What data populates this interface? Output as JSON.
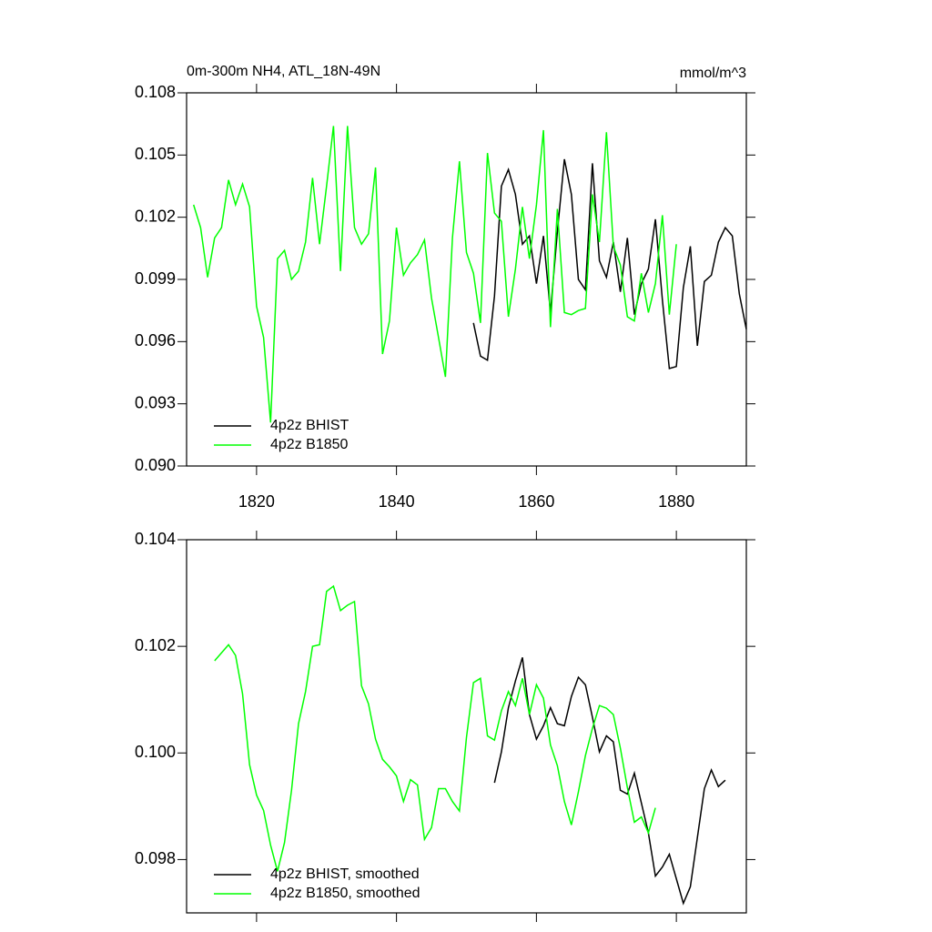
{
  "chart_data": [
    {
      "type": "line",
      "title": "0m-300m NH4, ATL_18N-49N",
      "units": "mmol/m^3",
      "xlim": [
        1810,
        1890
      ],
      "xticks": [
        1820,
        1840,
        1860,
        1880
      ],
      "ylim": [
        0.09,
        0.108
      ],
      "yticks": [
        {
          "value": 0.09,
          "label": "0.090"
        },
        0.093,
        0.096,
        0.099,
        0.102,
        0.105,
        0.108
      ],
      "series": [
        {
          "name": "4p2z BHIST",
          "color": "#000000",
          "x": [
            1851,
            1852,
            1853,
            1854,
            1855,
            1856,
            1857,
            1858,
            1859,
            1860,
            1861,
            1862,
            1863,
            1864,
            1865,
            1866,
            1867,
            1868,
            1869,
            1870,
            1871,
            1872,
            1873,
            1874,
            1875,
            1876,
            1877,
            1878,
            1879,
            1880,
            1881,
            1882,
            1883,
            1884,
            1885,
            1886,
            1887,
            1888,
            1889,
            1890
          ],
          "values": [
            0.0969,
            0.0953,
            0.0951,
            0.0982,
            0.1035,
            0.1043,
            0.1031,
            0.1007,
            0.1011,
            0.0988,
            0.1011,
            0.0974,
            0.1013,
            0.1048,
            0.1031,
            0.099,
            0.0985,
            0.1046,
            0.0999,
            0.0991,
            0.1008,
            0.0984,
            0.101,
            0.0973,
            0.0988,
            0.0995,
            0.1019,
            0.098,
            0.0947,
            0.0948,
            0.0986,
            0.1006,
            0.0958,
            0.0989,
            0.0992,
            0.1008,
            0.1015,
            0.1011,
            0.0983,
            0.0966
          ]
        },
        {
          "name": "4p2z B1850",
          "color": "#00ff00",
          "x": [
            1811,
            1812,
            1813,
            1814,
            1815,
            1816,
            1817,
            1818,
            1819,
            1820,
            1821,
            1822,
            1823,
            1824,
            1825,
            1826,
            1827,
            1828,
            1829,
            1830,
            1831,
            1832,
            1833,
            1834,
            1835,
            1836,
            1837,
            1838,
            1839,
            1840,
            1841,
            1842,
            1843,
            1844,
            1845,
            1846,
            1847,
            1848,
            1849,
            1850,
            1851,
            1852,
            1853,
            1854,
            1855,
            1856,
            1857,
            1858,
            1859,
            1860,
            1861,
            1862,
            1863,
            1864,
            1865,
            1866,
            1867,
            1868,
            1869,
            1870,
            1871,
            1872,
            1873,
            1874,
            1875,
            1876,
            1877,
            1878,
            1879,
            1880
          ],
          "values": [
            0.1026,
            0.1015,
            0.0991,
            0.101,
            0.1015,
            0.1038,
            0.1026,
            0.1036,
            0.1025,
            0.0977,
            0.0962,
            0.0921,
            0.1,
            0.1004,
            0.099,
            0.0994,
            0.1008,
            0.1039,
            0.1007,
            0.1035,
            0.1064,
            0.0994,
            0.1064,
            0.1015,
            0.1007,
            0.1012,
            0.1044,
            0.0954,
            0.097,
            0.1015,
            0.0992,
            0.0998,
            0.1002,
            0.1009,
            0.0981,
            0.0962,
            0.0943,
            0.101,
            0.1047,
            0.1003,
            0.0993,
            0.0969,
            0.1051,
            0.1022,
            0.1018,
            0.0972,
            0.0995,
            0.1025,
            0.1,
            0.1026,
            0.1062,
            0.0967,
            0.1024,
            0.0974,
            0.0973,
            0.0975,
            0.0976,
            0.1031,
            0.1008,
            0.1061,
            0.1006,
            0.0997,
            0.0972,
            0.097,
            0.0993,
            0.0974,
            0.0988,
            0.1021,
            0.0973,
            0.1007
          ]
        }
      ]
    },
    {
      "type": "line",
      "xlim": [
        1810,
        1890
      ],
      "ylim": [
        0.097,
        0.104
      ],
      "yticks": [
        0.098,
        {
          "value": 0.1,
          "label": "0.100"
        },
        0.102,
        0.104
      ],
      "series": [
        {
          "name": "4p2z BHIST, smoothed",
          "color": "#000000",
          "x": [
            1854,
            1855,
            1856,
            1857,
            1858,
            1859,
            1860,
            1861,
            1862,
            1863,
            1864,
            1865,
            1866,
            1867,
            1868,
            1869,
            1870,
            1871,
            1872,
            1873,
            1874,
            1875,
            1876,
            1877,
            1878,
            1879,
            1880,
            1881,
            1882,
            1883,
            1884,
            1885,
            1886,
            1887
          ],
          "values": [
            0.09944,
            0.10002,
            0.10085,
            0.10135,
            0.10179,
            0.10072,
            0.10026,
            0.10051,
            0.10085,
            0.10055,
            0.10051,
            0.10106,
            0.10142,
            0.10128,
            0.10067,
            0.10002,
            0.10032,
            0.10021,
            0.0993,
            0.09923,
            0.09962,
            0.09906,
            0.0985,
            0.09769,
            0.09786,
            0.0981,
            0.09764,
            0.09718,
            0.09749,
            0.09841,
            0.09933,
            0.09968,
            0.09937,
            0.09949
          ]
        },
        {
          "name": "4p2z B1850, smoothed",
          "color": "#00ff00",
          "x": [
            1814,
            1815,
            1816,
            1817,
            1818,
            1819,
            1820,
            1821,
            1822,
            1823,
            1824,
            1825,
            1826,
            1827,
            1828,
            1829,
            1830,
            1831,
            1832,
            1833,
            1834,
            1835,
            1836,
            1837,
            1838,
            1839,
            1840,
            1841,
            1842,
            1843,
            1844,
            1845,
            1846,
            1847,
            1848,
            1849,
            1850,
            1851,
            1852,
            1853,
            1854,
            1855,
            1856,
            1857,
            1858,
            1859,
            1860,
            1861,
            1862,
            1863,
            1864,
            1865,
            1866,
            1867,
            1868,
            1869,
            1870,
            1871,
            1872,
            1873,
            1874,
            1875,
            1876,
            1877
          ],
          "values": [
            0.10173,
            0.10188,
            0.10203,
            0.10183,
            0.10111,
            0.09978,
            0.09921,
            0.09892,
            0.09827,
            0.09778,
            0.09832,
            0.0993,
            0.10055,
            0.10115,
            0.102,
            0.10203,
            0.10303,
            0.10313,
            0.10267,
            0.10277,
            0.10284,
            0.10126,
            0.10092,
            0.10026,
            0.09988,
            0.09974,
            0.09957,
            0.09909,
            0.0995,
            0.0994,
            0.09838,
            0.0986,
            0.09933,
            0.09933,
            0.09909,
            0.09891,
            0.10029,
            0.10132,
            0.1014,
            0.10032,
            0.10024,
            0.10079,
            0.10115,
            0.10089,
            0.1014,
            0.10072,
            0.10128,
            0.10103,
            0.10015,
            0.09976,
            0.09909,
            0.09865,
            0.09927,
            0.09995,
            0.10046,
            0.10089,
            0.10084,
            0.10072,
            0.10009,
            0.09935,
            0.0987,
            0.0988,
            0.0985,
            0.09897
          ]
        }
      ]
    }
  ]
}
